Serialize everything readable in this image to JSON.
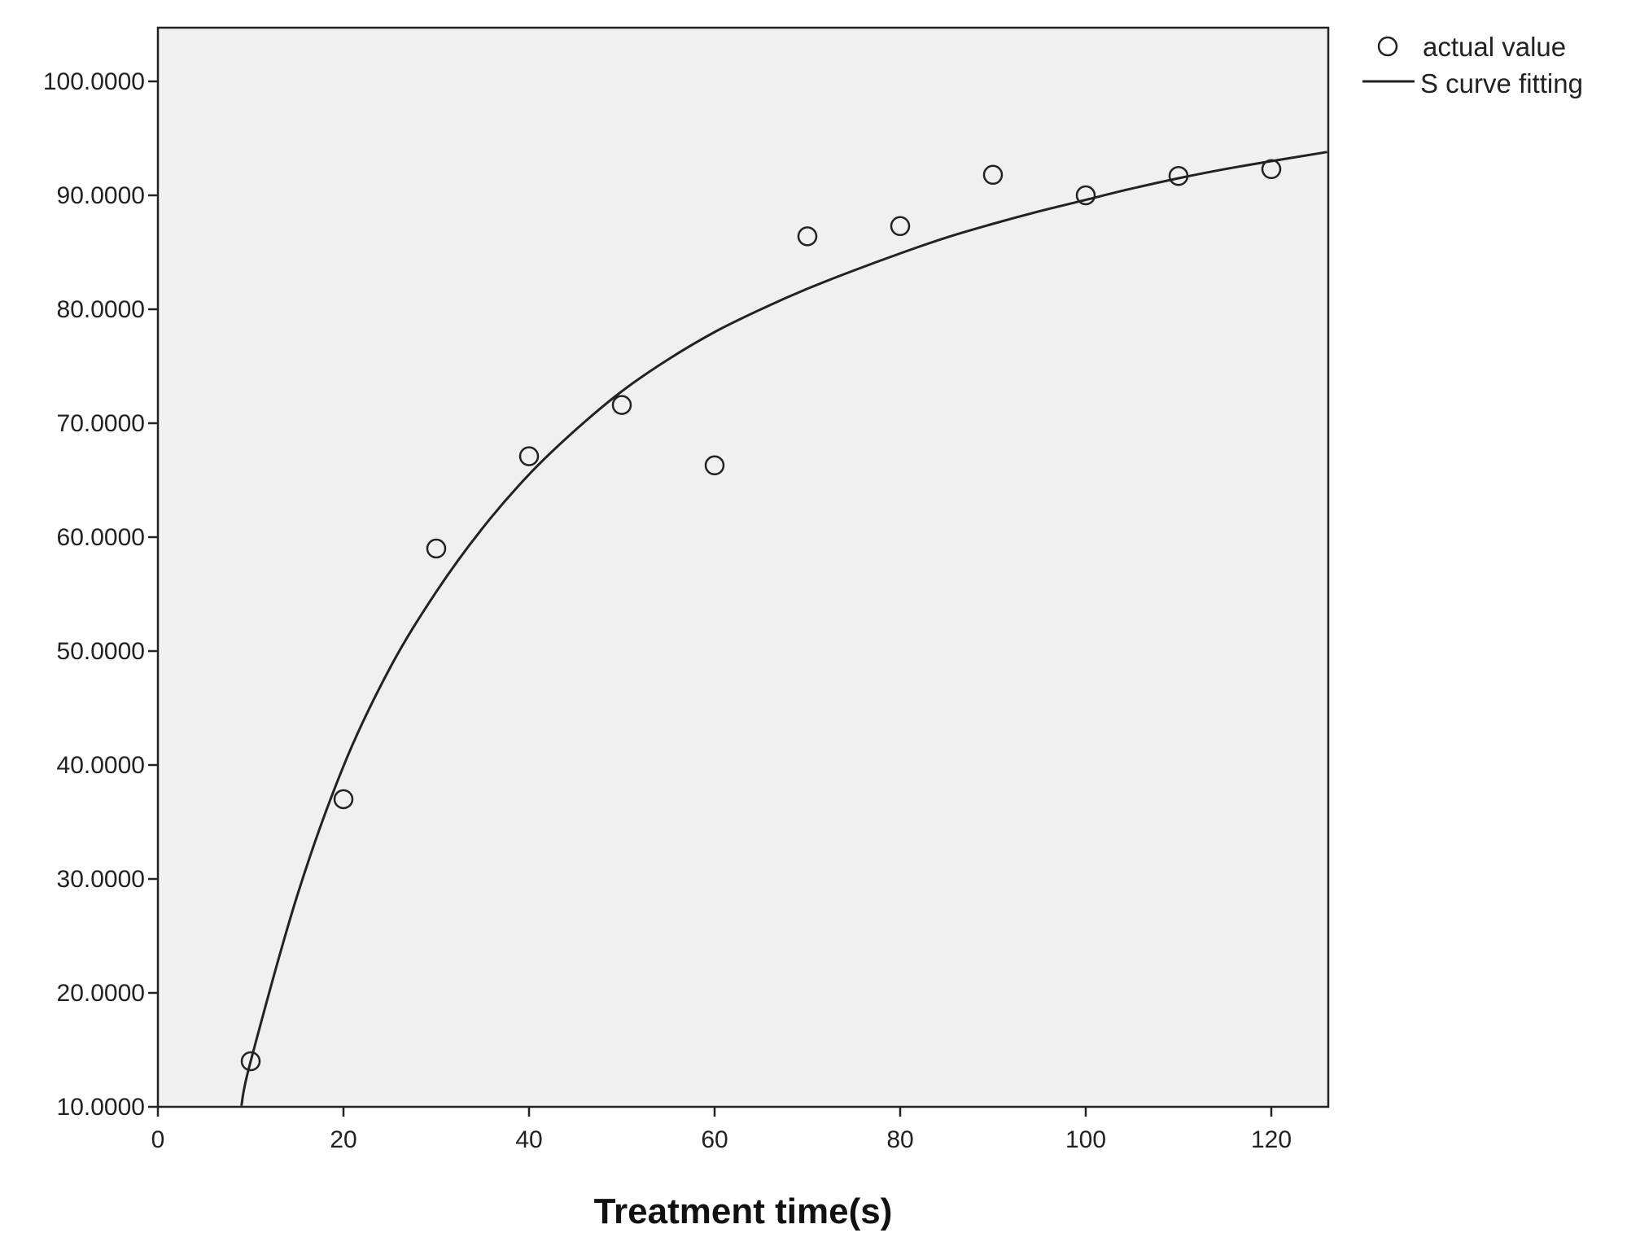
{
  "chart_data": {
    "type": "scatter",
    "title": "",
    "xlabel": "Treatment time(s)",
    "ylabel": "",
    "xlim": [
      0,
      126
    ],
    "ylim": [
      10,
      105
    ],
    "x_ticks": [
      0,
      20,
      40,
      60,
      80,
      100,
      120
    ],
    "x_tick_labels": [
      "0",
      "20",
      "40",
      "60",
      "80",
      "100",
      "120"
    ],
    "y_ticks": [
      10,
      20,
      30,
      40,
      50,
      60,
      70,
      80,
      90,
      100
    ],
    "y_tick_labels": [
      "10.0000",
      "20.0000",
      "30.0000",
      "40.0000",
      "50.0000",
      "60.0000",
      "70.0000",
      "80.0000",
      "90.0000",
      "100.0000"
    ],
    "grid": false,
    "legend_position": "top-right, outside plot area",
    "plot_background": "#f0f0f0",
    "series": [
      {
        "name": "actual value",
        "type": "scatter",
        "marker": "open-circle",
        "color": "#222222",
        "x": [
          10,
          20,
          30,
          40,
          50,
          60,
          70,
          80,
          90,
          100,
          110,
          120
        ],
        "y": [
          14.0,
          37.0,
          59.0,
          67.1,
          71.6,
          66.3,
          86.4,
          87.3,
          91.8,
          90.0,
          91.7,
          92.3
        ]
      },
      {
        "name": "S curve fitting",
        "type": "line",
        "color": "#222222",
        "x": [
          9,
          10,
          15,
          20,
          25,
          30,
          35,
          40,
          45,
          50,
          55,
          60,
          65,
          70,
          75,
          80,
          85,
          90,
          95,
          100,
          105,
          110,
          115,
          120,
          126
        ],
        "y": [
          10.1,
          14.0,
          28.5,
          39.9,
          48.5,
          55.2,
          60.8,
          65.5,
          69.4,
          72.8,
          75.6,
          78.0,
          80.0,
          81.8,
          83.4,
          84.9,
          86.3,
          87.5,
          88.6,
          89.6,
          90.6,
          91.5,
          92.3,
          93.0,
          93.8
        ]
      }
    ]
  }
}
